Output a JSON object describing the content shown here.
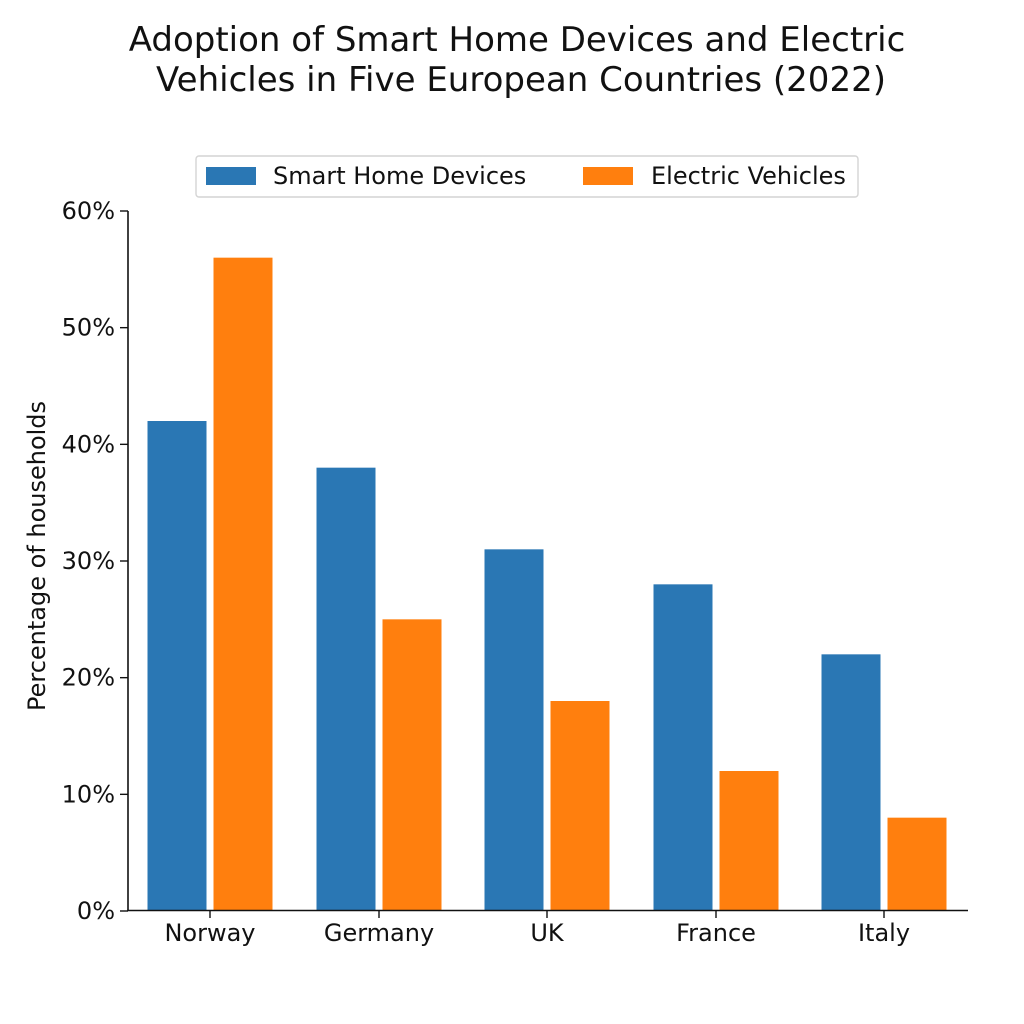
{
  "chart_data": {
    "type": "bar",
    "title": "Adoption of Smart Home Devices and Electric Vehicles in Five European Countries (2022)",
    "title_lines": [
      "Adoption of Smart Home Devices and Electric",
      "Vehicles in Five European Countries (2022)"
    ],
    "xlabel": "",
    "ylabel": "Percentage of households",
    "categories": [
      "Norway",
      "Germany",
      "UK",
      "France",
      "Italy"
    ],
    "series": [
      {
        "name": "Smart Home Devices",
        "values": [
          42,
          38,
          31,
          28,
          22
        ],
        "color": "#2a77b4"
      },
      {
        "name": "Electric Vehicles",
        "values": [
          56,
          25,
          18,
          12,
          8
        ],
        "color": "#ff7f0e"
      }
    ],
    "ylim": [
      0,
      60
    ],
    "yticks": [
      0,
      10,
      20,
      30,
      40,
      50,
      60
    ],
    "ytick_labels": [
      "0%",
      "10%",
      "20%",
      "30%",
      "40%",
      "50%",
      "60%"
    ],
    "grid": false,
    "legend_position": "top-center"
  }
}
